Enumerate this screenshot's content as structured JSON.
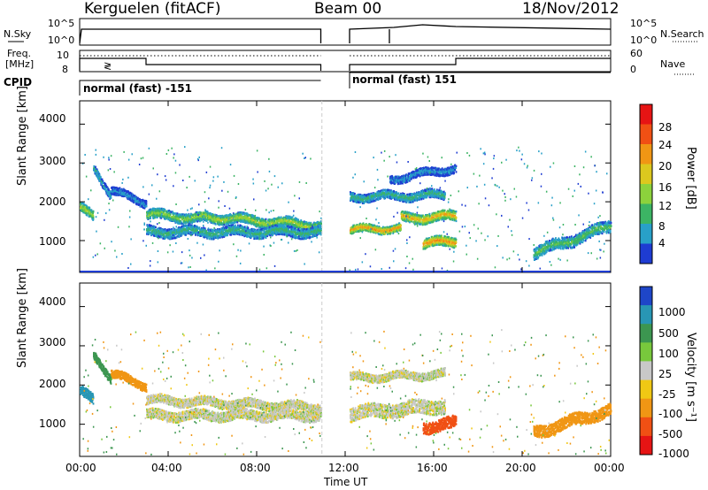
{
  "header": {
    "station": "Kerguelen (fitACF)",
    "beam": "Beam 00",
    "date": "18/Nov/2012"
  },
  "top_panels": {
    "nsky_label": "N.Sky",
    "nsearch_label": "N.Search",
    "nsky_ticks": [
      "10^5",
      "10^0"
    ],
    "nsearch_ticks": [
      "10^5",
      "10^0"
    ],
    "freq_label_1": "Freq.",
    "freq_label_2": "[MHz]",
    "freq_ticks": [
      "10",
      "8"
    ],
    "nave_label": "Nave",
    "nave_ticks": [
      "60",
      "0"
    ],
    "cpid_label": "CPID",
    "cpid_segments": [
      {
        "label": "normal (fast) -151",
        "start_hour": 0,
        "end_hour": 10.9
      },
      {
        "label": "normal (fast) 151",
        "start_hour": 12.2,
        "end_hour": 24
      }
    ]
  },
  "colors": {
    "power_scale": [
      "#1e3cd2",
      "#28a0c8",
      "#3cb464",
      "#8cd23c",
      "#dcc81e",
      "#f09614",
      "#f05014",
      "#e61414"
    ],
    "velocity_scale": [
      "#1e46c8",
      "#2896b4",
      "#3c9650",
      "#78c83c",
      "#c8c8c8",
      "#f0c814",
      "#f09614",
      "#f05014",
      "#e61414"
    ]
  },
  "chart_data": [
    {
      "type": "heatmap",
      "title": "Power",
      "xlabel": "Time UT",
      "ylabel": "Slant Range [km]",
      "xlim": [
        0,
        24
      ],
      "ylim": [
        180,
        4600
      ],
      "x_ticks": [
        "00:00",
        "04:00",
        "08:00",
        "12:00",
        "16:00",
        "20:00",
        "00:00"
      ],
      "x_tick_values": [
        0,
        4,
        8,
        12,
        16,
        20,
        24
      ],
      "y_ticks": [
        "1000",
        "2000",
        "3000",
        "4000"
      ],
      "y_tick_values": [
        1000,
        2000,
        3000,
        4000
      ],
      "colorbar_label": "Power [dB]",
      "colorbar_ticks": [
        "4",
        "8",
        "12",
        "16",
        "20",
        "24",
        "28"
      ],
      "colorbar_range": [
        0,
        32
      ],
      "data_gap_hours": [
        10.95,
        12.15
      ],
      "echo_bands": [
        {
          "t0": 0.0,
          "t1": 0.6,
          "r_start": 1900,
          "r_end": 1600,
          "width": 250,
          "level": 16
        },
        {
          "t0": 0.6,
          "t1": 1.4,
          "r_start": 2900,
          "r_end": 2200,
          "width": 200,
          "level": 8
        },
        {
          "t0": 1.4,
          "t1": 3.0,
          "r_start": 2300,
          "r_end": 2000,
          "width": 200,
          "level": 6
        },
        {
          "t0": 3.0,
          "t1": 5.5,
          "r_start": 1700,
          "r_end": 1600,
          "width": 250,
          "level": 14
        },
        {
          "t0": 5.5,
          "t1": 10.9,
          "r_start": 1650,
          "r_end": 1400,
          "width": 250,
          "level": 16
        },
        {
          "t0": 3.0,
          "t1": 10.9,
          "r_start": 1250,
          "r_end": 1250,
          "width": 250,
          "level": 10
        },
        {
          "t0": 12.2,
          "t1": 14.5,
          "r_start": 1300,
          "r_end": 1350,
          "width": 200,
          "level": 24
        },
        {
          "t0": 14.5,
          "t1": 17.0,
          "r_start": 1600,
          "r_end": 1650,
          "width": 250,
          "level": 22
        },
        {
          "t0": 15.5,
          "t1": 17.0,
          "r_start": 950,
          "r_end": 1000,
          "width": 250,
          "level": 24
        },
        {
          "t0": 12.2,
          "t1": 16.5,
          "r_start": 2150,
          "r_end": 2200,
          "width": 220,
          "level": 10
        },
        {
          "t0": 14.0,
          "t1": 17.0,
          "r_start": 2600,
          "r_end": 2900,
          "width": 200,
          "level": 6
        },
        {
          "t0": 20.5,
          "t1": 24.0,
          "r_start": 700,
          "r_end": 1400,
          "width": 300,
          "level": 12
        }
      ]
    },
    {
      "type": "heatmap",
      "title": "Velocity",
      "xlabel": "Time UT",
      "ylabel": "Slant Range [km]",
      "xlim": [
        0,
        24
      ],
      "ylim": [
        180,
        4600
      ],
      "x_ticks": [
        "00:00",
        "04:00",
        "08:00",
        "12:00",
        "16:00",
        "20:00",
        "00:00"
      ],
      "x_tick_values": [
        0,
        4,
        8,
        12,
        16,
        20,
        24
      ],
      "y_ticks": [
        "1000",
        "2000",
        "3000",
        "4000"
      ],
      "y_tick_values": [
        1000,
        2000,
        3000,
        4000
      ],
      "colorbar_label": "Velocity [m s⁻¹]",
      "colorbar_ticks": [
        "1000",
        "500",
        "100",
        "25",
        "-25",
        "-100",
        "-500",
        "-1000"
      ],
      "data_gap_hours": [
        10.95,
        12.15
      ],
      "echo_bands": [
        {
          "t0": 0.0,
          "t1": 0.6,
          "r_start": 1900,
          "r_end": 1600,
          "width": 250,
          "velocity": 500
        },
        {
          "t0": 0.6,
          "t1": 1.4,
          "r_start": 2800,
          "r_end": 2200,
          "width": 200,
          "velocity": 100
        },
        {
          "t0": 1.4,
          "t1": 3.0,
          "r_start": 2300,
          "r_end": 2000,
          "width": 200,
          "velocity": -100
        },
        {
          "t0": 3.0,
          "t1": 10.9,
          "r_start": 1650,
          "r_end": 1450,
          "width": 220,
          "velocity": 0
        },
        {
          "t0": 3.0,
          "t1": 10.9,
          "r_start": 1250,
          "r_end": 1250,
          "width": 250,
          "velocity": 0
        },
        {
          "t0": 12.2,
          "t1": 16.5,
          "r_start": 1300,
          "r_end": 1500,
          "width": 350,
          "velocity": 0
        },
        {
          "t0": 15.5,
          "t1": 17.0,
          "r_start": 950,
          "r_end": 1050,
          "width": 300,
          "velocity": -500
        },
        {
          "t0": 12.2,
          "t1": 16.5,
          "r_start": 2200,
          "r_end": 2300,
          "width": 200,
          "velocity": 0
        },
        {
          "t0": 20.5,
          "t1": 24.0,
          "r_start": 800,
          "r_end": 1400,
          "width": 300,
          "velocity": -100
        }
      ]
    }
  ]
}
